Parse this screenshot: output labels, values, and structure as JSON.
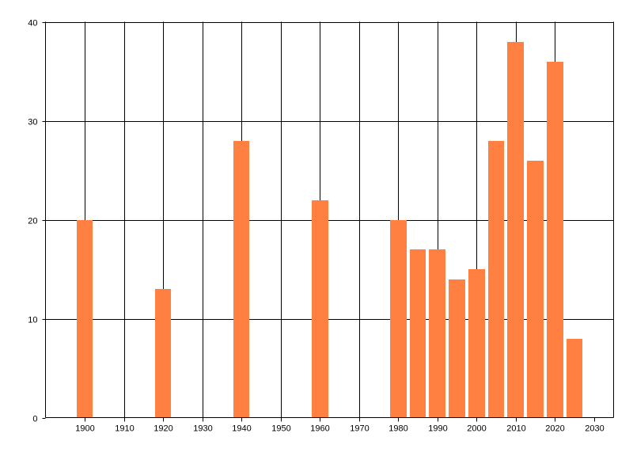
{
  "chart_data": {
    "type": "bar",
    "x": [
      1900,
      1920,
      1940,
      1960,
      1980,
      1985,
      1990,
      1995,
      2000,
      2005,
      2010,
      2015,
      2020,
      2025
    ],
    "values": [
      20,
      13,
      28,
      22,
      20,
      17,
      17,
      14,
      15,
      28,
      38,
      26,
      36,
      8
    ],
    "xlim": [
      1890,
      2035
    ],
    "ylim": [
      0,
      40
    ],
    "x_ticks": [
      1900,
      1910,
      1920,
      1930,
      1940,
      1950,
      1960,
      1970,
      1980,
      1990,
      2000,
      2010,
      2020,
      2030
    ],
    "y_ticks": [
      0,
      10,
      20,
      30,
      40
    ],
    "x_tick_labels": [
      "1900",
      "1910",
      "1920",
      "1930",
      "1940",
      "1950",
      "1960",
      "1970",
      "1980",
      "1990",
      "2000",
      "2010",
      "2020",
      "2030"
    ],
    "y_tick_labels": [
      "0",
      "10",
      "20",
      "30",
      "40"
    ],
    "grid": true,
    "bar_color": "#ff8040",
    "title": "",
    "xlabel": "",
    "ylabel": ""
  }
}
